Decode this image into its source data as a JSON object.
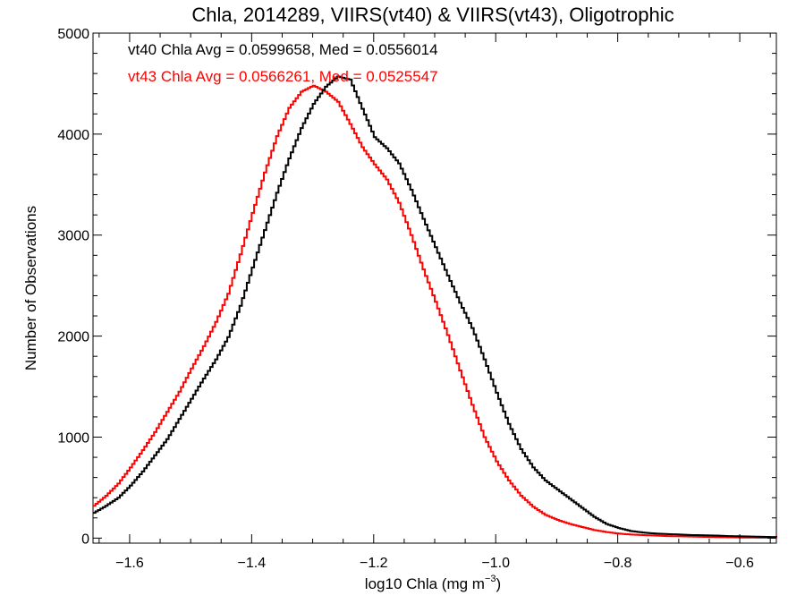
{
  "chart_data": {
    "type": "line",
    "title": "Chla, 2014289, VIIRS(vt40) & VIIRS(vt43), Oligotrophic",
    "xlabel_main": "log10 Chla (mg m",
    "xlabel_sup": "−3",
    "xlabel_close": ")",
    "ylabel": "Number of Observations",
    "xlim": [
      -1.66,
      -0.54
    ],
    "ylim": [
      -50,
      5000
    ],
    "x_ticks": [
      -1.6,
      -1.4,
      -1.2,
      -1.0,
      -0.8,
      -0.6
    ],
    "x_tick_labels": [
      "−1.6",
      "−1.4",
      "−1.2",
      "−1.0",
      "−0.8",
      "−0.6"
    ],
    "y_ticks": [
      0,
      1000,
      2000,
      3000,
      4000,
      5000
    ],
    "y_tick_labels": [
      "0",
      "1000",
      "2000",
      "3000",
      "4000",
      "5000"
    ],
    "grid": false,
    "step": true,
    "annotations": [
      {
        "text": "vt40 Chla Avg = 0.0599658, Med = 0.0556014",
        "color": "#000000"
      },
      {
        "text": "vt43 Chla Avg = 0.0566261, Med = 0.0525547",
        "color": "#ff0000"
      }
    ],
    "series": [
      {
        "color": "#000000",
        "x": [
          -1.66,
          -1.64,
          -1.62,
          -1.6,
          -1.58,
          -1.56,
          -1.54,
          -1.52,
          -1.5,
          -1.48,
          -1.46,
          -1.44,
          -1.42,
          -1.4,
          -1.38,
          -1.36,
          -1.34,
          -1.32,
          -1.3,
          -1.28,
          -1.26,
          -1.24,
          -1.22,
          -1.2,
          -1.18,
          -1.16,
          -1.14,
          -1.12,
          -1.1,
          -1.08,
          -1.06,
          -1.04,
          -1.02,
          -1.0,
          -0.98,
          -0.96,
          -0.94,
          -0.92,
          -0.9,
          -0.88,
          -0.86,
          -0.84,
          -0.82,
          -0.8,
          -0.78,
          -0.76,
          -0.74,
          -0.72,
          -0.7,
          -0.68,
          -0.66,
          -0.64,
          -0.62,
          -0.6,
          -0.58,
          -0.56,
          -0.54
        ],
        "y": [
          250,
          320,
          400,
          520,
          660,
          820,
          980,
          1180,
          1380,
          1580,
          1770,
          1990,
          2300,
          2680,
          3050,
          3420,
          3760,
          4060,
          4300,
          4470,
          4570,
          4540,
          4250,
          3970,
          3860,
          3710,
          3450,
          3160,
          2880,
          2600,
          2330,
          2080,
          1770,
          1440,
          1130,
          880,
          700,
          570,
          480,
          390,
          300,
          210,
          140,
          100,
          70,
          55,
          45,
          40,
          35,
          30,
          28,
          25,
          20,
          18,
          15,
          12,
          10
        ]
      },
      {
        "color": "#ff0000",
        "x": [
          -1.66,
          -1.64,
          -1.62,
          -1.6,
          -1.58,
          -1.56,
          -1.54,
          -1.52,
          -1.5,
          -1.48,
          -1.46,
          -1.44,
          -1.42,
          -1.4,
          -1.38,
          -1.36,
          -1.34,
          -1.32,
          -1.3,
          -1.28,
          -1.26,
          -1.24,
          -1.22,
          -1.2,
          -1.18,
          -1.16,
          -1.14,
          -1.12,
          -1.1,
          -1.08,
          -1.06,
          -1.04,
          -1.02,
          -1.0,
          -0.98,
          -0.96,
          -0.94,
          -0.92,
          -0.9,
          -0.88,
          -0.86,
          -0.84,
          -0.82,
          -0.8,
          -0.78,
          -0.76,
          -0.74,
          -0.72,
          -0.7,
          -0.68,
          -0.66,
          -0.64,
          -0.62,
          -0.6,
          -0.58,
          -0.56,
          -0.54
        ],
        "y": [
          320,
          420,
          540,
          700,
          870,
          1050,
          1250,
          1450,
          1680,
          1900,
          2140,
          2420,
          2810,
          3220,
          3620,
          3980,
          4260,
          4420,
          4480,
          4420,
          4320,
          4100,
          3870,
          3700,
          3550,
          3320,
          3000,
          2660,
          2340,
          2010,
          1660,
          1320,
          1000,
          760,
          570,
          420,
          310,
          230,
          180,
          140,
          110,
          80,
          60,
          45,
          35,
          30,
          25,
          20,
          18,
          15,
          12,
          10,
          8,
          6,
          5,
          4,
          3
        ]
      }
    ]
  }
}
